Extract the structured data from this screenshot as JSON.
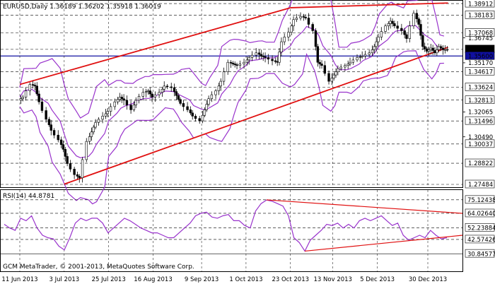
{
  "chart_data": [
    {
      "type": "candlestick",
      "title": "EURUSD,Daily  1.36189 1.36202 1.35918 1.36019",
      "price_ticks": [
        "1.38912",
        "1.38183",
        "1.37068",
        "1.36745",
        "1.36019",
        "1.35600",
        "1.35170",
        "1.34617",
        "1.33624",
        "1.32813",
        "1.32065",
        "1.31496",
        "1.30490",
        "1.30037",
        "1.28822",
        "1.27484"
      ],
      "highlight_labels": [
        "1.38912",
        "1.38183",
        "1.37068",
        "1.36019",
        "1.35600",
        "1.34617",
        "1.33624",
        "1.32813",
        "1.31496",
        "1.30037",
        "1.28822",
        "1.27484"
      ],
      "current_price": "1.36019",
      "level_line": "1.35600",
      "ylim": [
        1.2735,
        1.3905
      ],
      "x_labels": [
        "11 Jun 2013",
        "3 Jul 2013",
        "25 Jul 2013",
        "16 Aug 2013",
        "9 Sep 2013",
        "1 Oct 2013",
        "23 Oct 2013",
        "13 Nov 2013",
        "5 Dec 2013",
        "30 Dec 2013"
      ],
      "price_path": [
        {
          "date": "11 Jun 2013",
          "close": 1.33
        },
        {
          "date": "13 Jun 2013",
          "close": 1.338
        },
        {
          "date": "17 Jun 2013",
          "close": 1.337
        },
        {
          "date": "19 Jun 2013",
          "close": 1.327
        },
        {
          "date": "21 Jun 2013",
          "close": 1.316
        },
        {
          "date": "25 Jun 2013",
          "close": 1.309
        },
        {
          "date": "27 Jun 2013",
          "close": 1.303
        },
        {
          "date": "1 Jul 2013",
          "close": 1.297
        },
        {
          "date": "3 Jul 2013",
          "close": 1.288
        },
        {
          "date": "5 Jul 2013",
          "close": 1.281
        },
        {
          "date": "9 Jul 2013",
          "close": 1.279
        },
        {
          "date": "11 Jul 2013",
          "close": 1.302
        },
        {
          "date": "15 Jul 2013",
          "close": 1.308
        },
        {
          "date": "17 Jul 2013",
          "close": 1.314
        },
        {
          "date": "19 Jul 2013",
          "close": 1.318
        },
        {
          "date": "23 Jul 2013",
          "close": 1.321
        },
        {
          "date": "25 Jul 2013",
          "close": 1.327
        },
        {
          "date": "29 Jul 2013",
          "close": 1.33
        },
        {
          "date": "31 Jul 2013",
          "close": 1.328
        },
        {
          "date": "2 Aug 2013",
          "close": 1.322
        },
        {
          "date": "6 Aug 2013",
          "close": 1.328
        },
        {
          "date": "8 Aug 2013",
          "close": 1.333
        },
        {
          "date": "12 Aug 2013",
          "close": 1.334
        },
        {
          "date": "14 Aug 2013",
          "close": 1.33
        },
        {
          "date": "16 Aug 2013",
          "close": 1.333
        },
        {
          "date": "20 Aug 2013",
          "close": 1.337
        },
        {
          "date": "22 Aug 2013",
          "close": 1.336
        },
        {
          "date": "26 Aug 2013",
          "close": 1.331
        },
        {
          "date": "28 Aug 2013",
          "close": 1.326
        },
        {
          "date": "30 Aug 2013",
          "close": 1.322
        },
        {
          "date": "3 Sep 2013",
          "close": 1.318
        },
        {
          "date": "5 Sep 2013",
          "close": 1.315
        },
        {
          "date": "9 Sep 2013",
          "close": 1.322
        },
        {
          "date": "11 Sep 2013",
          "close": 1.329
        },
        {
          "date": "13 Sep 2013",
          "close": 1.334
        },
        {
          "date": "17 Sep 2013",
          "close": 1.34
        },
        {
          "date": "19 Sep 2013",
          "close": 1.352
        },
        {
          "date": "23 Sep 2013",
          "close": 1.351
        },
        {
          "date": "25 Sep 2013",
          "close": 1.35
        },
        {
          "date": "27 Sep 2013",
          "close": 1.352
        },
        {
          "date": "1 Oct 2013",
          "close": 1.355
        },
        {
          "date": "3 Oct 2013",
          "close": 1.358
        },
        {
          "date": "7 Oct 2013",
          "close": 1.356
        },
        {
          "date": "9 Oct 2013",
          "close": 1.355
        },
        {
          "date": "11 Oct 2013",
          "close": 1.353
        },
        {
          "date": "15 Oct 2013",
          "close": 1.352
        },
        {
          "date": "17 Oct 2013",
          "close": 1.365
        },
        {
          "date": "19 Oct 2013",
          "close": 1.371
        },
        {
          "date": "23 Oct 2013",
          "close": 1.379
        },
        {
          "date": "25 Oct 2013",
          "close": 1.381
        },
        {
          "date": "29 Oct 2013",
          "close": 1.38
        },
        {
          "date": "31 Oct 2013",
          "close": 1.372
        },
        {
          "date": "4 Nov 2013",
          "close": 1.352
        },
        {
          "date": "6 Nov 2013",
          "close": 1.35
        },
        {
          "date": "8 Nov 2013",
          "close": 1.34
        },
        {
          "date": "12 Nov 2013",
          "close": 1.344
        },
        {
          "date": "14 Nov 2013",
          "close": 1.348
        },
        {
          "date": "16 Nov 2013",
          "close": 1.35
        },
        {
          "date": "20 Nov 2013",
          "close": 1.352
        },
        {
          "date": "22 Nov 2013",
          "close": 1.355
        },
        {
          "date": "26 Nov 2013",
          "close": 1.356
        },
        {
          "date": "28 Nov 2013",
          "close": 1.358
        },
        {
          "date": "2 Dec 2013",
          "close": 1.362
        },
        {
          "date": "4 Dec 2013",
          "close": 1.368
        },
        {
          "date": "6 Dec 2013",
          "close": 1.375
        },
        {
          "date": "10 Dec 2013",
          "close": 1.378
        },
        {
          "date": "12 Dec 2013",
          "close": 1.375
        },
        {
          "date": "14 Dec 2013",
          "close": 1.372
        },
        {
          "date": "18 Dec 2013",
          "close": 1.367
        },
        {
          "date": "20 Dec 2013",
          "close": 1.383
        },
        {
          "date": "24 Dec 2013",
          "close": 1.376
        },
        {
          "date": "26 Dec 2013",
          "close": 1.362
        },
        {
          "date": "28 Dec 2013",
          "close": 1.359
        },
        {
          "date": "30 Dec 2013",
          "close": 1.361
        },
        {
          "date": "1 Jan 2014",
          "close": 1.358
        },
        {
          "date": "3 Jan 2014",
          "close": 1.362
        },
        {
          "date": "5 Jan 2014",
          "close": 1.36
        },
        {
          "date": "7 Jan 2014",
          "close": 1.36
        }
      ],
      "upper_trendline": [
        {
          "date": "11 Jun 2013",
          "price": 1.338
        },
        {
          "date": "23 Oct 2013",
          "price": 1.3865
        }
      ],
      "top_trendline": [
        {
          "date": "23 Oct 2013",
          "price": 1.3865
        },
        {
          "date": "9 Jan 2014",
          "price": 1.3895
        }
      ],
      "lower_trendline": [
        {
          "date": "3 Jul 2013",
          "price": 1.275
        },
        {
          "date": "9 Jan 2014",
          "price": 1.3615
        }
      ],
      "colors": {
        "bullish": "#000000",
        "bearish": "#000000",
        "bollinger": "#9933cc",
        "trendline": "#e01010",
        "level": "#1010a0"
      }
    },
    {
      "type": "line",
      "title": "RSI(14) 44.8781",
      "ticks": [
        "75.12438",
        "64.02640",
        "52.23884",
        "42.57426",
        "30.84577"
      ],
      "highlight_labels": [
        "75.12438",
        "64.02640",
        "52.23884",
        "42.57426",
        "30.84577"
      ],
      "ylim": [
        17,
        82
      ],
      "series": [
        {
          "values": [
            55,
            52,
            50,
            60,
            58,
            62,
            52,
            46,
            44,
            43,
            37,
            34,
            44,
            56,
            60,
            58,
            60,
            60,
            56,
            48,
            52,
            56,
            60,
            58,
            55,
            52,
            50,
            48,
            48,
            46,
            44,
            44,
            48,
            52,
            56,
            62,
            64,
            65,
            61,
            60,
            62,
            63,
            58,
            58,
            54,
            52,
            66,
            72,
            75,
            74,
            72,
            70,
            62,
            44,
            40,
            33,
            42,
            46,
            50,
            55,
            54,
            56,
            52,
            55,
            52,
            58,
            60,
            58,
            60,
            62,
            58,
            54,
            56,
            46,
            42,
            44,
            46,
            44,
            50,
            46,
            43,
            44
          ]
        }
      ],
      "resistance_line": [
        75.1,
        64.0
      ],
      "support_line": [
        33.0,
        46.0
      ],
      "line_color": "#9933cc"
    }
  ],
  "footer": {
    "copyright": "GCM MetaTrader, © 2001-2013, MetaQuotes Software Corp."
  }
}
